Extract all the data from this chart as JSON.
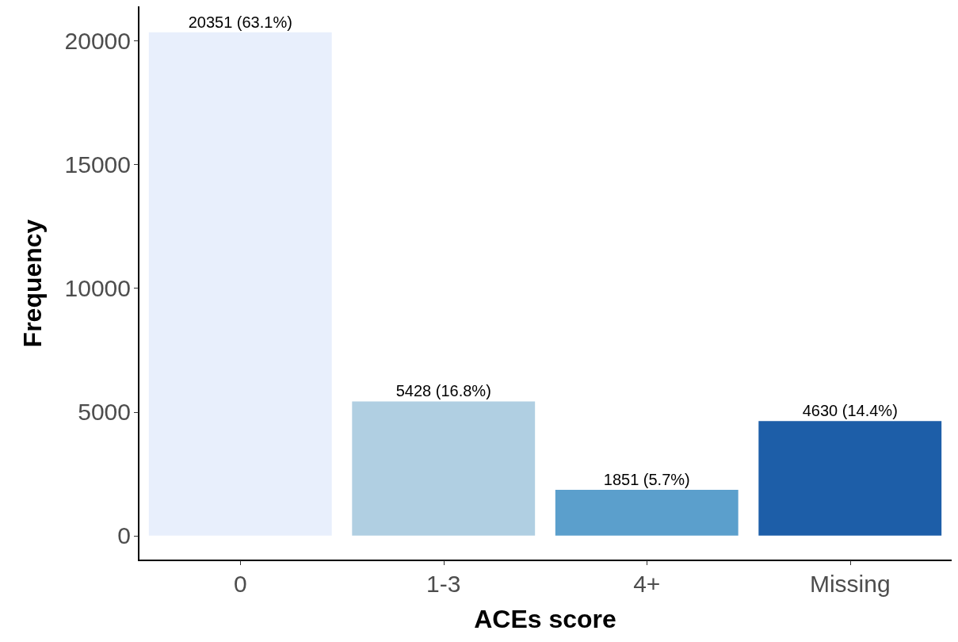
{
  "chart_data": {
    "type": "bar",
    "xlabel": "ACEs score",
    "ylabel": "Frequency",
    "categories": [
      "0",
      "1-3",
      "4+",
      "Missing"
    ],
    "values": [
      20351,
      5428,
      1851,
      4630
    ],
    "colors": [
      "#e8effc",
      "#b0cfe2",
      "#5b9fcc",
      "#1d5ea8"
    ],
    "value_labels": [
      "20351 (63.1%)",
      "5428 (16.8%)",
      "1851 (5.7%)",
      "4630 (14.4%)"
    ],
    "ylim": [
      -1000,
      21400
    ],
    "yticks": [
      0,
      5000,
      10000,
      15000,
      20000
    ],
    "grid": false
  }
}
